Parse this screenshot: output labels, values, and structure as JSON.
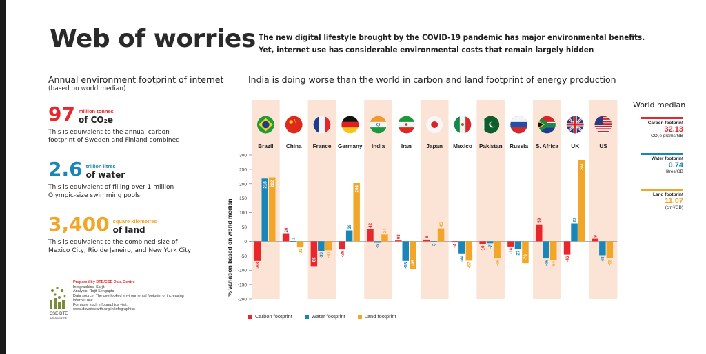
{
  "header": {
    "title": "Web of worries",
    "subtitle_line1": "The new digital lifestyle brought by the COVID-19 pandemic has major environmental benefits.",
    "subtitle_line2": "Yet, internet use has considerable environmental costs that remain largely hidden"
  },
  "left_panel": {
    "heading": "Annual environment footprint of internet",
    "subheading": "(based on world median)",
    "stats": [
      {
        "value": "97",
        "small": "million tonnes",
        "unit": "of CO₂e",
        "desc": "This is equivalent to the annual carbon footprint of Sweden and Finland combined",
        "color": "#e8262c"
      },
      {
        "value": "2.6",
        "small": "trillion litres",
        "unit": "of water",
        "desc": "This is equivalent of filling over 1 million Olympic-size swimming pools",
        "color": "#1a86b8"
      },
      {
        "value": "3,400",
        "small": "square kilometres",
        "unit": "of land",
        "desc": "This is equivalent to the combined size of Mexico City, Rio de Janeiro, and New York City",
        "color": "#f2a628"
      }
    ],
    "credits": {
      "prepared": "Prepared by DTE/CSE Data Centre",
      "infographics": "Infographics: Sarjit",
      "analysis": "Analysis: Rajit Sengupta",
      "source": "Data source: The overlooked environmental footprint of increasing internet use",
      "more": "For more such infographics visit: www.downtoearth.org.in/infographics"
    },
    "logo_text": "CSE·DTE DATA CENTRE"
  },
  "chart_data": {
    "type": "bar",
    "title": "India is doing worse than the world in carbon and land footprint of energy production",
    "ylabel": "% variation based on world median",
    "ylim": [
      -200,
      300
    ],
    "yticks": [
      300,
      250,
      200,
      150,
      100,
      50,
      0,
      -50,
      -100,
      -150,
      -200
    ],
    "categories": [
      "Brazil",
      "China",
      "France",
      "Germany",
      "India",
      "Iran",
      "Japan",
      "Mexico",
      "Pakistan",
      "Russia",
      "S. Africa",
      "UK",
      "US"
    ],
    "series": [
      {
        "name": "Carbon footprint",
        "color": "#e8262c",
        "values": [
          -68,
          26,
          -86,
          -28,
          42,
          3,
          6,
          -4,
          -10,
          -18,
          59,
          -46,
          9
        ]
      },
      {
        "name": "Water footprint",
        "color": "#1a86b8",
        "values": [
          218,
          1,
          -33,
          38,
          -5,
          -68,
          -3,
          -44,
          -7,
          -27,
          -59,
          62,
          -48
        ]
      },
      {
        "name": "Land footprint",
        "color": "#f2a628",
        "values": [
          222,
          -21,
          -31,
          204,
          24,
          -95,
          45,
          -67,
          -59,
          -76,
          -64,
          281,
          -58
        ]
      }
    ],
    "data_labels": {
      "carbon": [
        "-68",
        "26",
        "-86",
        "-28",
        "42",
        "03",
        "6",
        "-4",
        "-10",
        "-18",
        "59",
        "-46",
        "9"
      ],
      "water": [
        "218",
        "1",
        "-33",
        "38",
        "-5",
        "-68",
        "-3",
        "-44",
        "-7",
        "-27",
        "-59",
        "62",
        "-48"
      ],
      "land": [
        "222",
        "-21",
        "-31",
        "204",
        "24",
        "-95",
        "45",
        "-67",
        "-59",
        "-76",
        "-64",
        "281",
        "-58"
      ]
    },
    "flags": [
      "brazil-flag",
      "china-flag",
      "france-flag",
      "germany-flag",
      "india-flag",
      "iran-flag",
      "japan-flag",
      "mexico-flag",
      "pakistan-flag",
      "russia-flag",
      "south-africa-flag",
      "uk-flag",
      "us-flag"
    ]
  },
  "world_median": {
    "title": "World median",
    "items": [
      {
        "label": "Carbon footprint",
        "value": "32.13",
        "unit": "CO₂e grams/GB",
        "color": "#e8262c"
      },
      {
        "label": "Water footprint",
        "value": "0.74",
        "unit": "litres/GB",
        "color": "#1a86b8"
      },
      {
        "label": "Land footprint",
        "value": "11.07",
        "unit": "(cm²/GB)",
        "color": "#f2a628"
      }
    ]
  }
}
